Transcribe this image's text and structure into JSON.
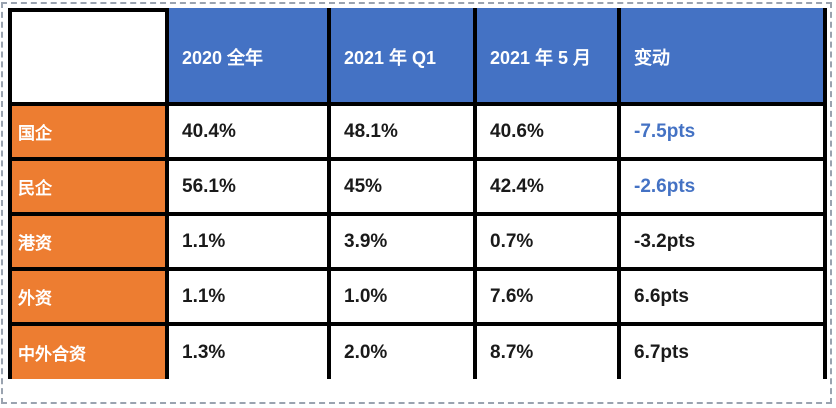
{
  "chart_data": {
    "type": "table",
    "corner_label": "",
    "columns": [
      "2020 全年",
      "2021 年 Q1",
      "2021 年 5 月",
      "变动"
    ],
    "rows": [
      {
        "label": "国企",
        "values": [
          "40.4%",
          "48.1%",
          "40.6%",
          "-7.5pts"
        ],
        "change_style": "highlight"
      },
      {
        "label": "民企",
        "values": [
          "56.1%",
          "45%",
          "42.4%",
          "-2.6pts"
        ],
        "change_style": "highlight"
      },
      {
        "label": "港资",
        "values": [
          "1.1%",
          "3.9%",
          "0.7%",
          "-3.2pts"
        ],
        "change_style": "normal"
      },
      {
        "label": "外资",
        "values": [
          "1.1%",
          "1.0%",
          "7.6%",
          "6.6pts"
        ],
        "change_style": "normal"
      },
      {
        "label": "中外合资",
        "values": [
          "1.3%",
          "2.0%",
          "8.7%",
          "6.7pts"
        ],
        "change_style": "normal"
      }
    ],
    "layout": {
      "grid": "black solid cell borders",
      "selection_marquee": "dashed rectangle around table"
    }
  },
  "colors": {
    "header_bg": "#4472C4",
    "header_text": "#FFFFFF",
    "row_header_bg": "#ED7D31",
    "row_header_text": "#FFFFFF",
    "cell_text": "#1A1A1A",
    "highlight_text": "#4472C4",
    "grid_border": "#000000",
    "selection_dash": "#9AA3B0",
    "page_bg": "#FFFFFF"
  }
}
